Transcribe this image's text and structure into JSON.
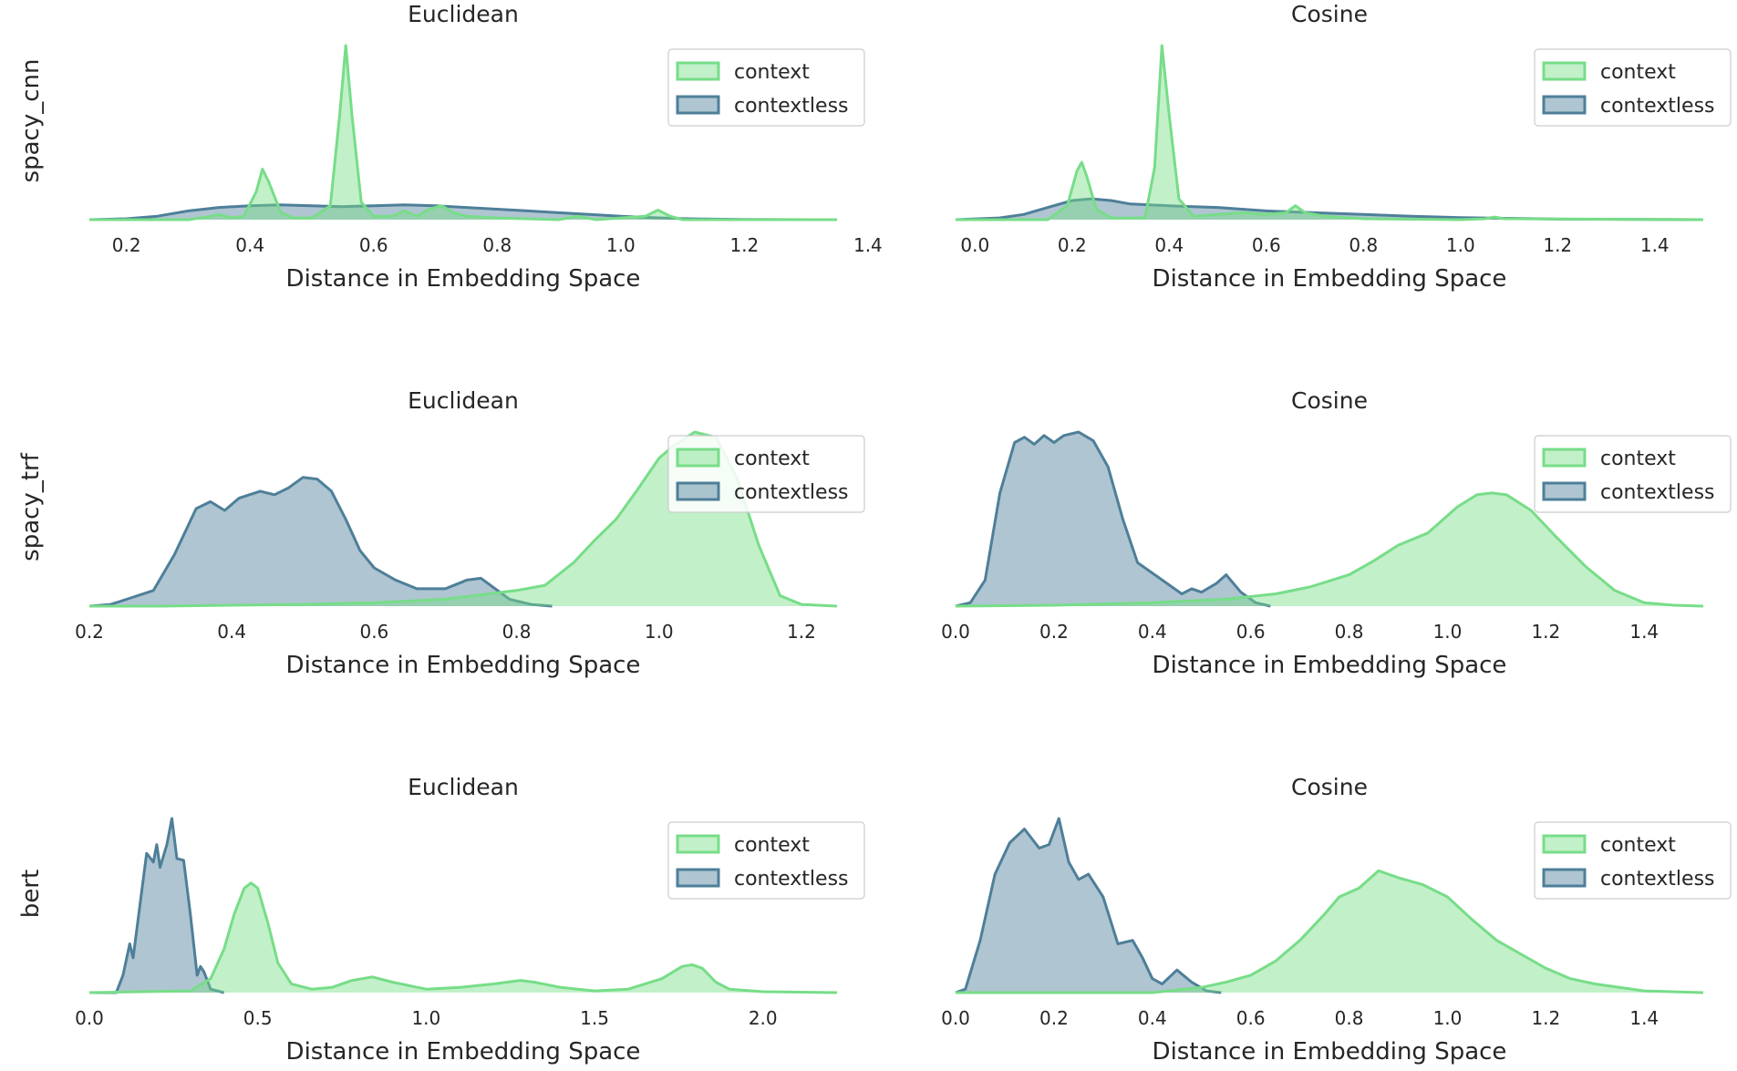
{
  "chart_data": [
    {
      "type": "area",
      "row_label": "spacy_cnn",
      "title": "Euclidean",
      "xlabel": "Distance in Embedding Space",
      "xlim": [
        0.14,
        1.35
      ],
      "xticks": [
        0.2,
        0.4,
        0.6,
        0.8,
        1.0,
        1.2,
        1.4
      ],
      "tick_labels": [
        "0.2",
        "0.4",
        "0.6",
        "0.8",
        "1.0",
        "1.2",
        "1.4"
      ],
      "ymax": 1.0,
      "legend": {
        "position": "top-right",
        "entries": [
          "context",
          "contextless"
        ]
      },
      "series": [
        {
          "name": "context",
          "color": "#77dd88",
          "x": [
            0.14,
            0.3,
            0.33,
            0.35,
            0.37,
            0.39,
            0.41,
            0.42,
            0.43,
            0.45,
            0.47,
            0.5,
            0.53,
            0.545,
            0.555,
            0.565,
            0.58,
            0.6,
            0.63,
            0.65,
            0.67,
            0.69,
            0.71,
            0.73,
            0.75,
            0.8,
            0.9,
            0.93,
            0.96,
            1.0,
            1.04,
            1.06,
            1.08,
            1.1,
            1.35
          ],
          "y": [
            0.0,
            0.0,
            0.015,
            0.03,
            0.01,
            0.02,
            0.16,
            0.29,
            0.22,
            0.04,
            0.01,
            0.01,
            0.08,
            0.6,
            1.0,
            0.6,
            0.1,
            0.02,
            0.02,
            0.05,
            0.02,
            0.06,
            0.08,
            0.04,
            0.02,
            0.01,
            0.0,
            0.02,
            0.0,
            0.01,
            0.02,
            0.055,
            0.02,
            0.0,
            0.0
          ]
        },
        {
          "name": "contextless",
          "color": "#4e7f99",
          "x": [
            0.14,
            0.2,
            0.25,
            0.3,
            0.35,
            0.4,
            0.45,
            0.5,
            0.55,
            0.6,
            0.65,
            0.7,
            0.75,
            0.8,
            0.85,
            0.9,
            0.95,
            1.0,
            1.05,
            1.1,
            1.15,
            1.2,
            1.35
          ],
          "y": [
            0.0,
            0.005,
            0.02,
            0.05,
            0.07,
            0.08,
            0.085,
            0.08,
            0.075,
            0.08,
            0.085,
            0.08,
            0.07,
            0.06,
            0.05,
            0.04,
            0.03,
            0.02,
            0.012,
            0.006,
            0.003,
            0.001,
            0.0
          ]
        }
      ]
    },
    {
      "type": "area",
      "row_label": "",
      "title": "Cosine",
      "xlabel": "Distance in Embedding Space",
      "xlim": [
        -0.04,
        1.5
      ],
      "xticks": [
        0.0,
        0.2,
        0.4,
        0.6,
        0.8,
        1.0,
        1.2,
        1.4
      ],
      "tick_labels": [
        "0.0",
        "0.2",
        "0.4",
        "0.6",
        "0.8",
        "1.0",
        "1.2",
        "1.4"
      ],
      "ymax": 1.0,
      "legend": {
        "position": "top-right",
        "entries": [
          "context",
          "contextless"
        ]
      },
      "series": [
        {
          "name": "context",
          "color": "#77dd88",
          "x": [
            -0.04,
            0.15,
            0.19,
            0.21,
            0.22,
            0.23,
            0.25,
            0.28,
            0.35,
            0.37,
            0.385,
            0.4,
            0.42,
            0.45,
            0.5,
            0.55,
            0.6,
            0.64,
            0.66,
            0.68,
            0.72,
            0.8,
            1.0,
            1.05,
            1.07,
            1.09,
            1.5
          ],
          "y": [
            0.0,
            0.0,
            0.08,
            0.28,
            0.33,
            0.25,
            0.06,
            0.01,
            0.01,
            0.3,
            1.0,
            0.6,
            0.12,
            0.02,
            0.03,
            0.04,
            0.03,
            0.04,
            0.08,
            0.04,
            0.02,
            0.005,
            0.0,
            0.005,
            0.015,
            0.005,
            0.0
          ]
        },
        {
          "name": "contextless",
          "color": "#4e7f99",
          "x": [
            -0.04,
            0.05,
            0.1,
            0.15,
            0.2,
            0.24,
            0.28,
            0.32,
            0.36,
            0.4,
            0.45,
            0.5,
            0.55,
            0.6,
            0.65,
            0.7,
            0.8,
            0.9,
            1.0,
            1.1,
            1.2,
            1.5
          ],
          "y": [
            0.0,
            0.01,
            0.03,
            0.07,
            0.11,
            0.12,
            0.11,
            0.09,
            0.085,
            0.08,
            0.075,
            0.07,
            0.06,
            0.05,
            0.045,
            0.04,
            0.03,
            0.02,
            0.012,
            0.008,
            0.003,
            0.0
          ]
        }
      ]
    },
    {
      "type": "area",
      "row_label": "spacy_trf",
      "title": "Euclidean",
      "xlabel": "Distance in Embedding Space",
      "xlim": [
        0.2,
        1.25
      ],
      "xticks": [
        0.2,
        0.4,
        0.6,
        0.8,
        1.0,
        1.2
      ],
      "tick_labels": [
        "0.2",
        "0.4",
        "0.6",
        "0.8",
        "1.0",
        "1.2"
      ],
      "ymax": 1.0,
      "legend": {
        "position": "top-right",
        "entries": [
          "context",
          "contextless"
        ]
      },
      "series": [
        {
          "name": "context",
          "color": "#77dd88",
          "x": [
            0.2,
            0.3,
            0.4,
            0.5,
            0.6,
            0.7,
            0.76,
            0.8,
            0.84,
            0.88,
            0.91,
            0.94,
            0.97,
            1.0,
            1.02,
            1.05,
            1.08,
            1.11,
            1.14,
            1.17,
            1.2,
            1.25
          ],
          "y": [
            0.0,
            0.0,
            0.005,
            0.01,
            0.02,
            0.04,
            0.07,
            0.09,
            0.12,
            0.25,
            0.38,
            0.5,
            0.67,
            0.85,
            0.92,
            1.0,
            0.97,
            0.73,
            0.35,
            0.06,
            0.01,
            0.0
          ]
        },
        {
          "name": "contextless",
          "color": "#4e7f99",
          "x": [
            0.2,
            0.23,
            0.26,
            0.29,
            0.32,
            0.35,
            0.37,
            0.39,
            0.41,
            0.44,
            0.46,
            0.48,
            0.5,
            0.52,
            0.54,
            0.56,
            0.58,
            0.6,
            0.63,
            0.66,
            0.7,
            0.73,
            0.75,
            0.77,
            0.79,
            0.82,
            0.85
          ],
          "y": [
            0.0,
            0.01,
            0.05,
            0.09,
            0.3,
            0.56,
            0.6,
            0.55,
            0.62,
            0.66,
            0.64,
            0.68,
            0.74,
            0.73,
            0.66,
            0.5,
            0.32,
            0.22,
            0.15,
            0.1,
            0.1,
            0.15,
            0.16,
            0.1,
            0.04,
            0.01,
            0.0
          ]
        }
      ]
    },
    {
      "type": "area",
      "row_label": "",
      "title": "Cosine",
      "xlabel": "Distance in Embedding Space",
      "xlim": [
        0.0,
        1.52
      ],
      "xticks": [
        0.0,
        0.2,
        0.4,
        0.6,
        0.8,
        1.0,
        1.2,
        1.4
      ],
      "tick_labels": [
        "0.0",
        "0.2",
        "0.4",
        "0.6",
        "0.8",
        "1.0",
        "1.2",
        "1.4"
      ],
      "ymax": 1.0,
      "legend": {
        "position": "top-right",
        "entries": [
          "context",
          "contextless"
        ]
      },
      "series": [
        {
          "name": "context",
          "color": "#77dd88",
          "x": [
            0.0,
            0.2,
            0.4,
            0.55,
            0.65,
            0.72,
            0.8,
            0.85,
            0.9,
            0.96,
            1.02,
            1.06,
            1.09,
            1.12,
            1.17,
            1.22,
            1.28,
            1.34,
            1.4,
            1.46,
            1.52
          ],
          "y": [
            0.0,
            0.005,
            0.02,
            0.04,
            0.07,
            0.11,
            0.18,
            0.26,
            0.35,
            0.42,
            0.57,
            0.64,
            0.65,
            0.64,
            0.55,
            0.4,
            0.23,
            0.09,
            0.02,
            0.005,
            0.0
          ]
        },
        {
          "name": "contextless",
          "color": "#4e7f99",
          "x": [
            0.0,
            0.03,
            0.06,
            0.09,
            0.12,
            0.14,
            0.16,
            0.18,
            0.2,
            0.22,
            0.25,
            0.28,
            0.31,
            0.34,
            0.37,
            0.41,
            0.44,
            0.46,
            0.48,
            0.5,
            0.53,
            0.55,
            0.58,
            0.61,
            0.64
          ],
          "y": [
            0.0,
            0.02,
            0.15,
            0.65,
            0.94,
            0.97,
            0.93,
            0.98,
            0.94,
            0.98,
            1.0,
            0.95,
            0.8,
            0.5,
            0.25,
            0.17,
            0.11,
            0.07,
            0.1,
            0.08,
            0.13,
            0.18,
            0.08,
            0.02,
            0.0
          ]
        }
      ]
    },
    {
      "type": "area",
      "row_label": "bert",
      "title": "Euclidean",
      "xlabel": "Distance in Embedding Space",
      "xlim": [
        0.0,
        2.22
      ],
      "xticks": [
        0.0,
        0.5,
        1.0,
        1.5,
        2.0
      ],
      "tick_labels": [
        "0.0",
        "0.5",
        "1.0",
        "1.5",
        "2.0"
      ],
      "ymax": 1.0,
      "legend": {
        "position": "top-right",
        "entries": [
          "context",
          "contextless"
        ]
      },
      "series": [
        {
          "name": "context",
          "color": "#77dd88",
          "x": [
            0.0,
            0.3,
            0.36,
            0.4,
            0.43,
            0.46,
            0.48,
            0.5,
            0.53,
            0.56,
            0.6,
            0.66,
            0.72,
            0.78,
            0.84,
            0.9,
            1.0,
            1.1,
            1.2,
            1.28,
            1.32,
            1.4,
            1.5,
            1.6,
            1.7,
            1.76,
            1.79,
            1.82,
            1.86,
            1.9,
            2.0,
            2.22
          ],
          "y": [
            0.0,
            0.01,
            0.08,
            0.25,
            0.45,
            0.6,
            0.63,
            0.6,
            0.4,
            0.17,
            0.05,
            0.02,
            0.03,
            0.07,
            0.09,
            0.06,
            0.02,
            0.03,
            0.05,
            0.07,
            0.06,
            0.03,
            0.01,
            0.02,
            0.08,
            0.15,
            0.16,
            0.14,
            0.06,
            0.02,
            0.005,
            0.0
          ]
        },
        {
          "name": "contextless",
          "color": "#4e7f99",
          "x": [
            0.0,
            0.08,
            0.1,
            0.12,
            0.13,
            0.15,
            0.17,
            0.19,
            0.2,
            0.21,
            0.23,
            0.245,
            0.26,
            0.28,
            0.3,
            0.32,
            0.33,
            0.34,
            0.36,
            0.4
          ],
          "y": [
            0.0,
            0.0,
            0.1,
            0.28,
            0.2,
            0.5,
            0.8,
            0.75,
            0.85,
            0.72,
            0.85,
            1.0,
            0.77,
            0.76,
            0.45,
            0.1,
            0.15,
            0.12,
            0.02,
            0.0
          ]
        }
      ]
    },
    {
      "type": "area",
      "row_label": "",
      "title": "Cosine",
      "xlabel": "Distance in Embedding Space",
      "xlim": [
        0.0,
        1.52
      ],
      "xticks": [
        0.0,
        0.2,
        0.4,
        0.6,
        0.8,
        1.0,
        1.2,
        1.4
      ],
      "tick_labels": [
        "0.0",
        "0.2",
        "0.4",
        "0.6",
        "0.8",
        "1.0",
        "1.2",
        "1.4"
      ],
      "ymax": 1.0,
      "legend": {
        "position": "top-right",
        "entries": [
          "context",
          "contextless"
        ]
      },
      "series": [
        {
          "name": "context",
          "color": "#77dd88",
          "x": [
            0.0,
            0.4,
            0.5,
            0.55,
            0.6,
            0.65,
            0.7,
            0.75,
            0.78,
            0.82,
            0.86,
            0.9,
            0.95,
            1.0,
            1.05,
            1.1,
            1.15,
            1.2,
            1.25,
            1.3,
            1.4,
            1.52
          ],
          "y": [
            0.0,
            0.0,
            0.03,
            0.06,
            0.1,
            0.18,
            0.3,
            0.45,
            0.55,
            0.6,
            0.7,
            0.66,
            0.62,
            0.55,
            0.42,
            0.3,
            0.22,
            0.14,
            0.08,
            0.05,
            0.01,
            0.0
          ]
        },
        {
          "name": "contextless",
          "color": "#4e7f99",
          "x": [
            0.0,
            0.02,
            0.05,
            0.08,
            0.11,
            0.14,
            0.17,
            0.19,
            0.21,
            0.23,
            0.25,
            0.27,
            0.3,
            0.33,
            0.36,
            0.38,
            0.4,
            0.42,
            0.45,
            0.48,
            0.51,
            0.54
          ],
          "y": [
            0.0,
            0.02,
            0.3,
            0.68,
            0.86,
            0.94,
            0.83,
            0.85,
            1.0,
            0.75,
            0.65,
            0.68,
            0.55,
            0.28,
            0.3,
            0.2,
            0.08,
            0.05,
            0.13,
            0.06,
            0.01,
            0.0
          ]
        }
      ]
    }
  ]
}
